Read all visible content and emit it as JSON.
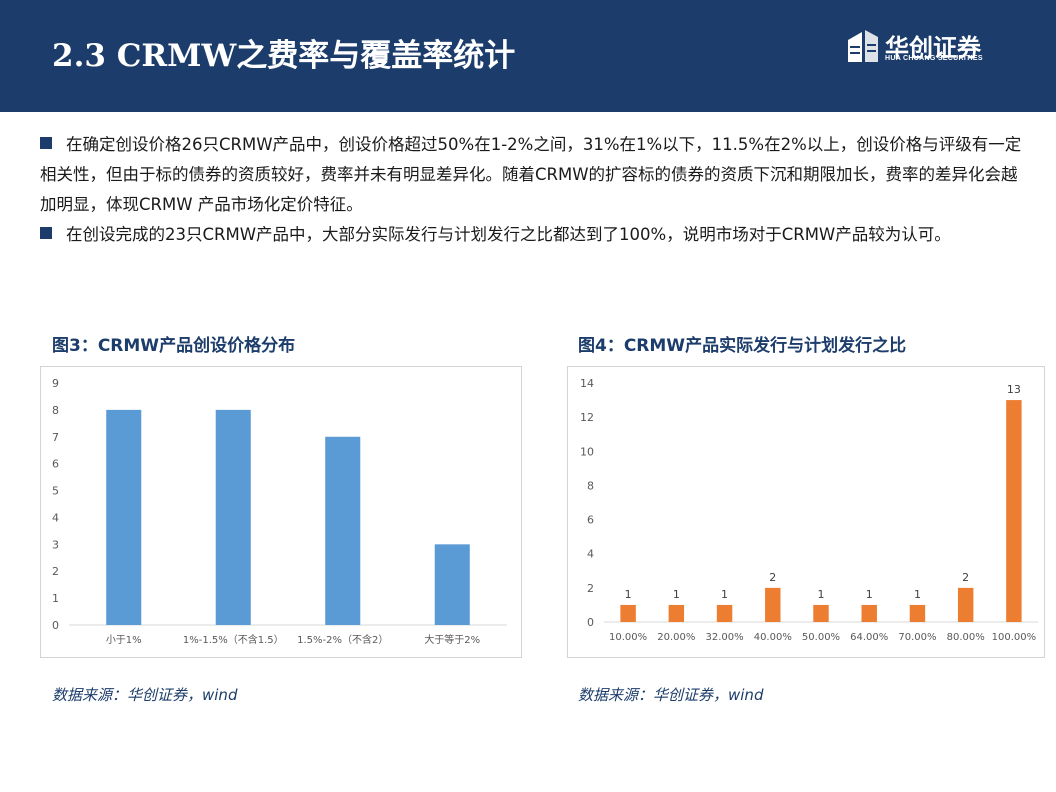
{
  "header": {
    "title": "2.3 CRMW之费率与覆盖率统计",
    "logo_name": "华创证券",
    "logo_sub": "HUA CHUANG SECURITIES"
  },
  "bullets": [
    "在确定创设价格26只CRMW产品中，创设价格超过50%在1-2%之间，31%在1%以下，11.5%在2%以上，创设价格与评级有一定相关性，但由于标的债券的资质较好，费率并未有明显差异化。随着CRMW的扩容标的债券的资质下沉和期限加长，费率的差异化会越加明显，体现CRMW 产品市场化定价特征。",
    "在创设完成的23只CRMW产品中，大部分实际发行与计划发行之比都达到了100%，说明市场对于CRMW产品较为认可。"
  ],
  "figure3": {
    "title": "图3：CRMW产品创设价格分布",
    "source": "数据来源：华创证券，wind"
  },
  "figure4": {
    "title": "图4：CRMW产品实际发行与计划发行之比",
    "source": "数据来源：华创证券，wind"
  },
  "colors": {
    "header_bg": "#1c3d6b",
    "bar_blue": "#5b9bd5",
    "bar_orange": "#ed7d31"
  },
  "chart_data": [
    {
      "type": "bar",
      "categories": [
        "小于1%",
        "1%-1.5%（不含1.5）",
        "1.5%-2%（不含2）",
        "大于等于2%"
      ],
      "values": [
        8,
        8,
        7,
        3
      ],
      "ylim": [
        0,
        9
      ],
      "yticks": [
        0,
        1,
        2,
        3,
        4,
        5,
        6,
        7,
        8,
        9
      ],
      "grid": false,
      "data_labels": false
    },
    {
      "type": "bar",
      "categories": [
        "10.00%",
        "20.00%",
        "32.00%",
        "40.00%",
        "50.00%",
        "64.00%",
        "70.00%",
        "80.00%",
        "100.00%"
      ],
      "values": [
        1,
        1,
        1,
        2,
        1,
        1,
        1,
        2,
        13
      ],
      "ylim": [
        0,
        14
      ],
      "yticks": [
        0,
        2,
        4,
        6,
        8,
        10,
        12,
        14
      ],
      "grid": false,
      "data_labels": true
    }
  ]
}
